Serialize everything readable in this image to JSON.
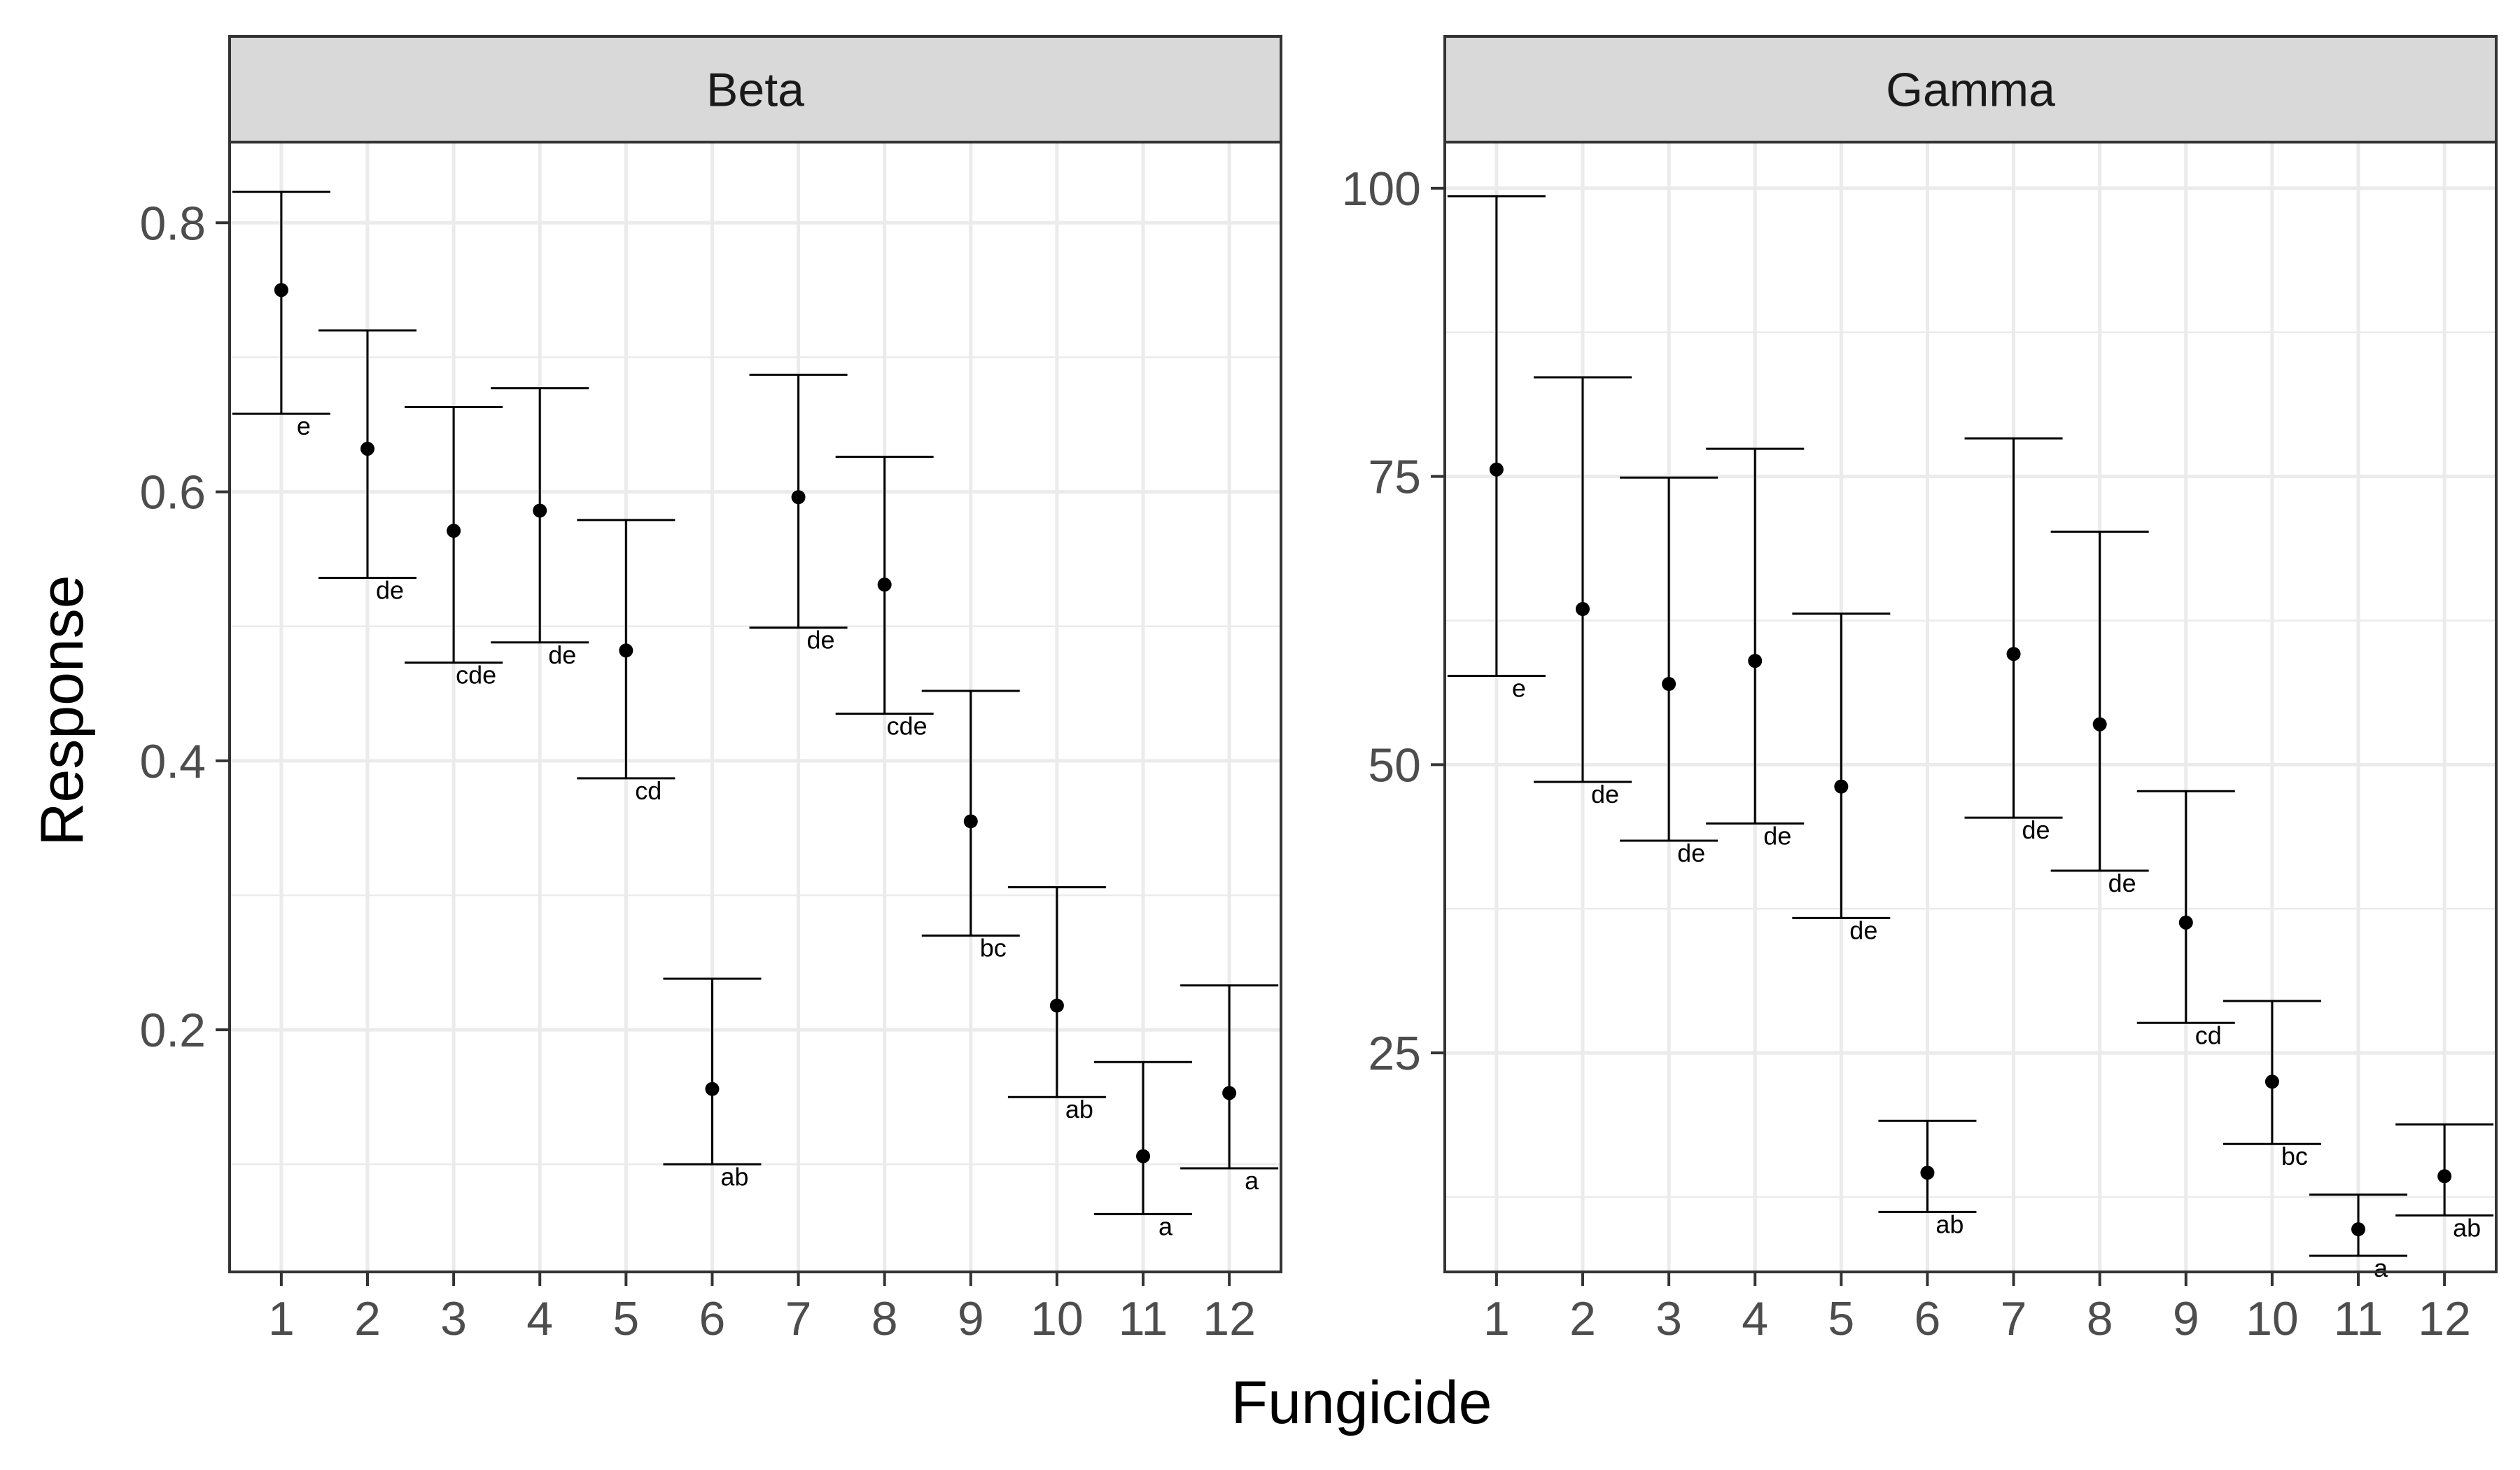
{
  "chart_data": {
    "type": "scatter",
    "xlabel": "Fungicide",
    "ylabel": "Response",
    "colors": {
      "point": "#000000",
      "strip_fill": "#d9d9d9",
      "grid": "#ebebeb",
      "panel_border": "#333333",
      "tick_text": "#4d4d4d"
    },
    "categories": [
      "1",
      "2",
      "3",
      "4",
      "5",
      "6",
      "7",
      "8",
      "9",
      "10",
      "11",
      "12"
    ],
    "panels": [
      {
        "title": "Beta",
        "ylim": [
          0.02,
          0.86
        ],
        "yticks": [
          0.2,
          0.4,
          0.6,
          0.8
        ],
        "ytick_labels": [
          "0.2",
          "0.4",
          "0.6",
          "0.8"
        ],
        "grid": true,
        "points": [
          {
            "x": "1",
            "y": 0.75,
            "lower": 0.658,
            "upper": 0.823,
            "label": "e"
          },
          {
            "x": "2",
            "y": 0.632,
            "lower": 0.536,
            "upper": 0.72,
            "label": "de"
          },
          {
            "x": "3",
            "y": 0.571,
            "lower": 0.473,
            "upper": 0.663,
            "label": "cde"
          },
          {
            "x": "4",
            "y": 0.586,
            "lower": 0.488,
            "upper": 0.677,
            "label": "de"
          },
          {
            "x": "5",
            "y": 0.482,
            "lower": 0.387,
            "upper": 0.579,
            "label": "cd"
          },
          {
            "x": "6",
            "y": 0.156,
            "lower": 0.1,
            "upper": 0.238,
            "label": "ab"
          },
          {
            "x": "7",
            "y": 0.596,
            "lower": 0.499,
            "upper": 0.687,
            "label": "de"
          },
          {
            "x": "8",
            "y": 0.531,
            "lower": 0.435,
            "upper": 0.626,
            "label": "cde"
          },
          {
            "x": "9",
            "y": 0.355,
            "lower": 0.27,
            "upper": 0.452,
            "label": "bc"
          },
          {
            "x": "10",
            "y": 0.218,
            "lower": 0.15,
            "upper": 0.306,
            "label": "ab"
          },
          {
            "x": "11",
            "y": 0.106,
            "lower": 0.063,
            "upper": 0.176,
            "label": "a"
          },
          {
            "x": "12",
            "y": 0.153,
            "lower": 0.097,
            "upper": 0.233,
            "label": "a"
          }
        ]
      },
      {
        "title": "Gamma",
        "ylim": [
          6.0,
          104.0
        ],
        "yticks": [
          25,
          50,
          75,
          100
        ],
        "ytick_labels": [
          "25",
          "50",
          "75",
          "100"
        ],
        "grid": true,
        "points": [
          {
            "x": "1",
            "y": 75.6,
            "lower": 57.7,
            "upper": 99.3,
            "label": "e"
          },
          {
            "x": "2",
            "y": 63.5,
            "lower": 48.5,
            "upper": 83.6,
            "label": "de"
          },
          {
            "x": "3",
            "y": 57.0,
            "lower": 43.4,
            "upper": 74.9,
            "label": "de"
          },
          {
            "x": "4",
            "y": 59.0,
            "lower": 44.9,
            "upper": 77.4,
            "label": "de"
          },
          {
            "x": "5",
            "y": 48.1,
            "lower": 36.7,
            "upper": 63.1,
            "label": "de"
          },
          {
            "x": "6",
            "y": 14.6,
            "lower": 11.2,
            "upper": 19.1,
            "label": "ab"
          },
          {
            "x": "7",
            "y": 59.6,
            "lower": 45.4,
            "upper": 78.3,
            "label": "de"
          },
          {
            "x": "8",
            "y": 53.5,
            "lower": 40.8,
            "upper": 70.2,
            "label": "de"
          },
          {
            "x": "9",
            "y": 36.3,
            "lower": 27.6,
            "upper": 47.7,
            "label": "cd"
          },
          {
            "x": "10",
            "y": 22.5,
            "lower": 17.1,
            "upper": 29.5,
            "label": "bc"
          },
          {
            "x": "11",
            "y": 9.7,
            "lower": 7.4,
            "upper": 12.7,
            "label": "a"
          },
          {
            "x": "12",
            "y": 14.3,
            "lower": 10.9,
            "upper": 18.8,
            "label": "ab"
          }
        ]
      }
    ]
  }
}
